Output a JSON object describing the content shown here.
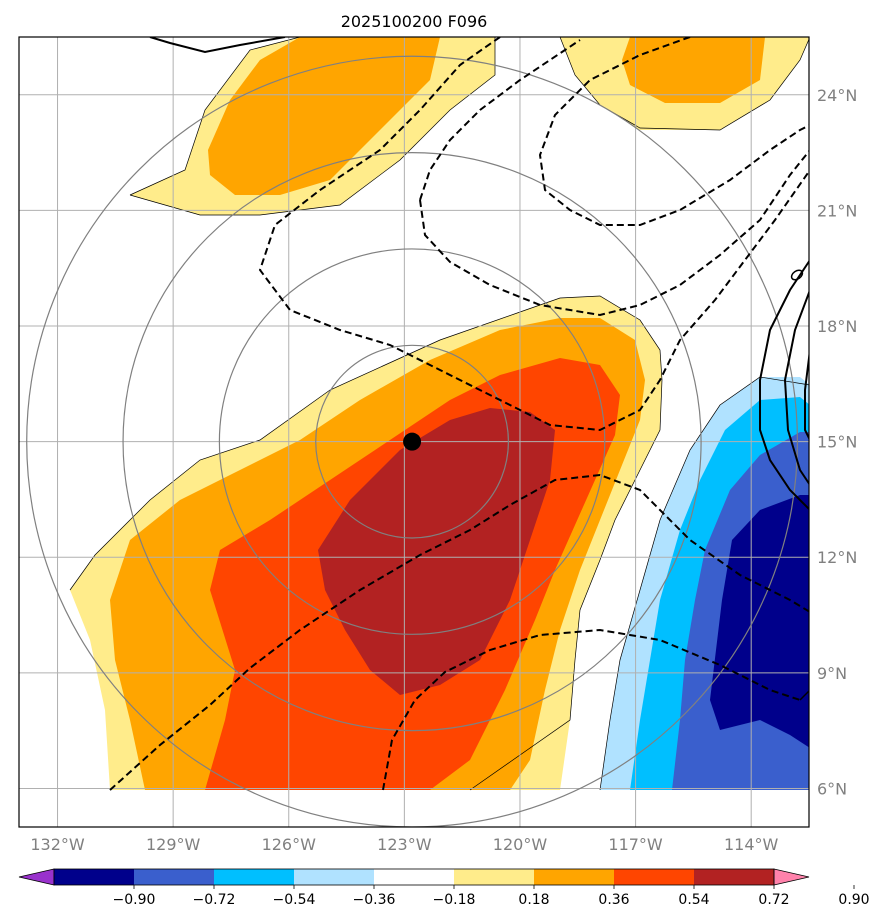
{
  "title": "2025100200 F096",
  "map": {
    "lon_range": [
      -133,
      -112.5
    ],
    "lat_range": [
      5,
      25.5
    ],
    "lon_ticks": [
      {
        "value": -132,
        "label": "132°W"
      },
      {
        "value": -129,
        "label": "129°W"
      },
      {
        "value": -126,
        "label": "126°W"
      },
      {
        "value": -123,
        "label": "123°W"
      },
      {
        "value": -120,
        "label": "120°W"
      },
      {
        "value": -117,
        "label": "117°W"
      },
      {
        "value": -114,
        "label": "114°W"
      }
    ],
    "lat_ticks": [
      {
        "value": 6,
        "label": "6°N"
      },
      {
        "value": 9,
        "label": "9°N"
      },
      {
        "value": 12,
        "label": "12°N"
      },
      {
        "value": 15,
        "label": "15°N"
      },
      {
        "value": 18,
        "label": "18°N"
      },
      {
        "value": 21,
        "label": "21°N"
      },
      {
        "value": 24,
        "label": "24°N"
      }
    ],
    "grid": true,
    "center_marker": {
      "lon": -122.8,
      "lat": 15.0
    },
    "range_rings_deg": [
      2.5,
      5,
      7.5,
      10
    ]
  },
  "colorbar": {
    "levels": [
      "−0.90",
      "−0.72",
      "−0.54",
      "−0.36",
      "−0.18",
      "0.18",
      "0.36",
      "0.54",
      "0.72",
      "0.90"
    ],
    "colors": [
      "#9932CC",
      "#00008B",
      "#3A5FCD",
      "#00BFFF",
      "#B0E2FF",
      "#FFFFFF",
      "#FFEC8B",
      "#FFA500",
      "#FF4500",
      "#B22222",
      "#FF82AB"
    ],
    "extend": "both"
  },
  "colors": {
    "neg_1": "#B0E2FF",
    "neg_2": "#00BFFF",
    "neg_3": "#3A5FCD",
    "neg_4": "#00008B",
    "pos_1": "#FFEC8B",
    "pos_2": "#FFA500",
    "pos_3": "#FF4500",
    "pos_4": "#B22222"
  }
}
